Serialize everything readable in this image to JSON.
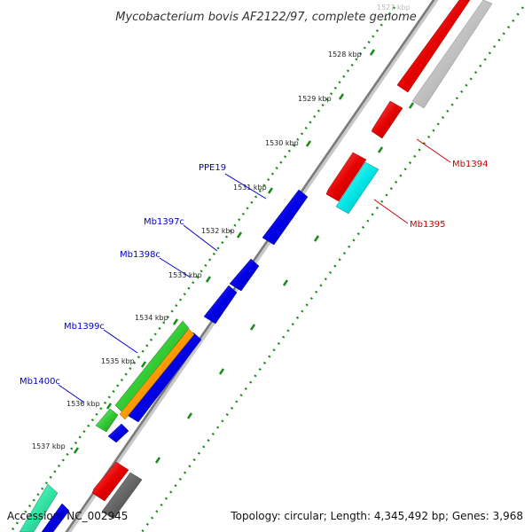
{
  "title": "Mycobacterium bovis AF2122/97, complete genome",
  "footer": {
    "accession": "Accession: NC_002945",
    "summary": "Topology: circular; Length: 4,345,492 bp; Genes: 3,968"
  },
  "ticks": [
    {
      "label": "1527 kbp",
      "faded": true
    },
    {
      "label": "1528 kbp",
      "faded": false
    },
    {
      "label": "1529 kbp",
      "faded": false
    },
    {
      "label": "1530 kbp",
      "faded": false
    },
    {
      "label": "1531 kbp",
      "faded": false
    },
    {
      "label": "1532 kbp",
      "faded": false
    },
    {
      "label": "1533 kbp",
      "faded": false
    },
    {
      "label": "1534 kbp",
      "faded": false
    },
    {
      "label": "1535 kbp",
      "faded": false
    },
    {
      "label": "1536 kbp",
      "faded": false
    },
    {
      "label": "1537 kbp",
      "faded": false
    }
  ],
  "gene_labels": {
    "ppe19": {
      "text": "PPE19",
      "color": "#0000cc"
    },
    "mb1397c": {
      "text": "Mb1397c",
      "color": "#0000cc"
    },
    "mb1398c": {
      "text": "Mb1398c",
      "color": "#0000cc"
    },
    "mb1399c": {
      "text": "Mb1399c",
      "color": "#0000cc"
    },
    "mb1400c": {
      "text": "Mb1400c",
      "color": "#0000cc"
    },
    "mb1394": {
      "text": "Mb1394",
      "color": "#cc0000"
    },
    "mb1395": {
      "text": "Mb1395",
      "color": "#cc0000"
    }
  },
  "colors": {
    "forward_strand": "#e60000",
    "reverse_strand": "#0000e6",
    "cyan_feature": "#00e6e6",
    "grey_feature": "#c0c0c0",
    "green_feature": "#33cc33",
    "orange_feature": "#ff9900",
    "teal_feature": "#33e6a6",
    "dark_grey_feature": "#666666",
    "backbone": "#808080",
    "tick_dots": "#1a8c1a"
  },
  "icons": {
    "forward_gene": "right-arrow-block",
    "reverse_gene": "left-arrow-block"
  }
}
